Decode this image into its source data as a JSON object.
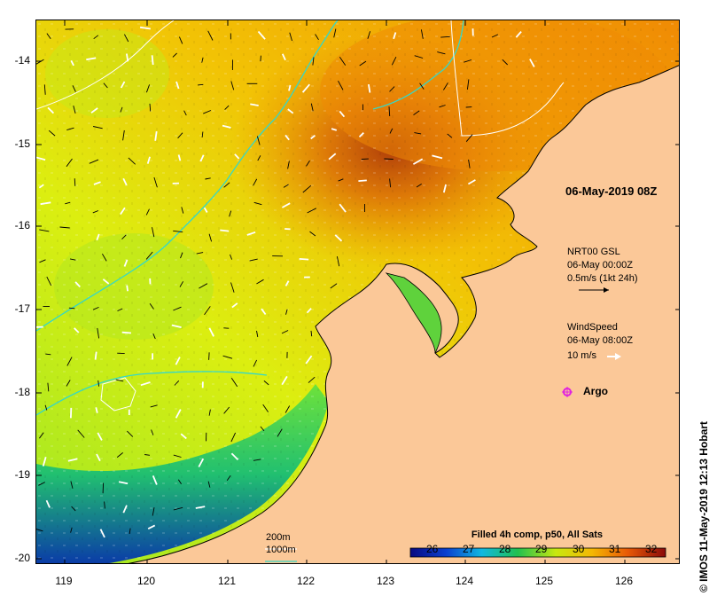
{
  "map": {
    "date_label": "06-May-2019 08Z",
    "current_legend": {
      "line1": "NRT00 GSL",
      "line2": "06-May 00:00Z",
      "line3": "0.5m/s (1kt 24h)"
    },
    "wind_legend": {
      "line1": "WindSpeed",
      "line2": "06-May 08:00Z",
      "line3": "10 m/s"
    },
    "argo_label": "Argo",
    "contour_legend": {
      "line1": "200m",
      "line2": "1000m"
    },
    "colorbar": {
      "title": "Filled 4h comp, p50, All Sats",
      "ticks": [
        "26",
        "27",
        "28",
        "29",
        "30",
        "31",
        "32"
      ],
      "range": [
        25.5,
        32.5
      ]
    },
    "credit": "© IMOS 11-May-2019 12:13 Hobart",
    "y_ticks": [
      "-14",
      "-15",
      "-16",
      "-17",
      "-18",
      "-19",
      "-20"
    ],
    "x_ticks": [
      "119",
      "120",
      "121",
      "122",
      "123",
      "124",
      "125",
      "126"
    ],
    "lon_range": [
      118.6,
      126.65
    ],
    "lat_range": [
      -13.5,
      -20.05
    ],
    "colors": {
      "land": "#fbc898",
      "coast": "#000000",
      "contour_200": "#ffffff",
      "contour_1000": "#34d8c8",
      "argo": "#e020e0"
    }
  }
}
